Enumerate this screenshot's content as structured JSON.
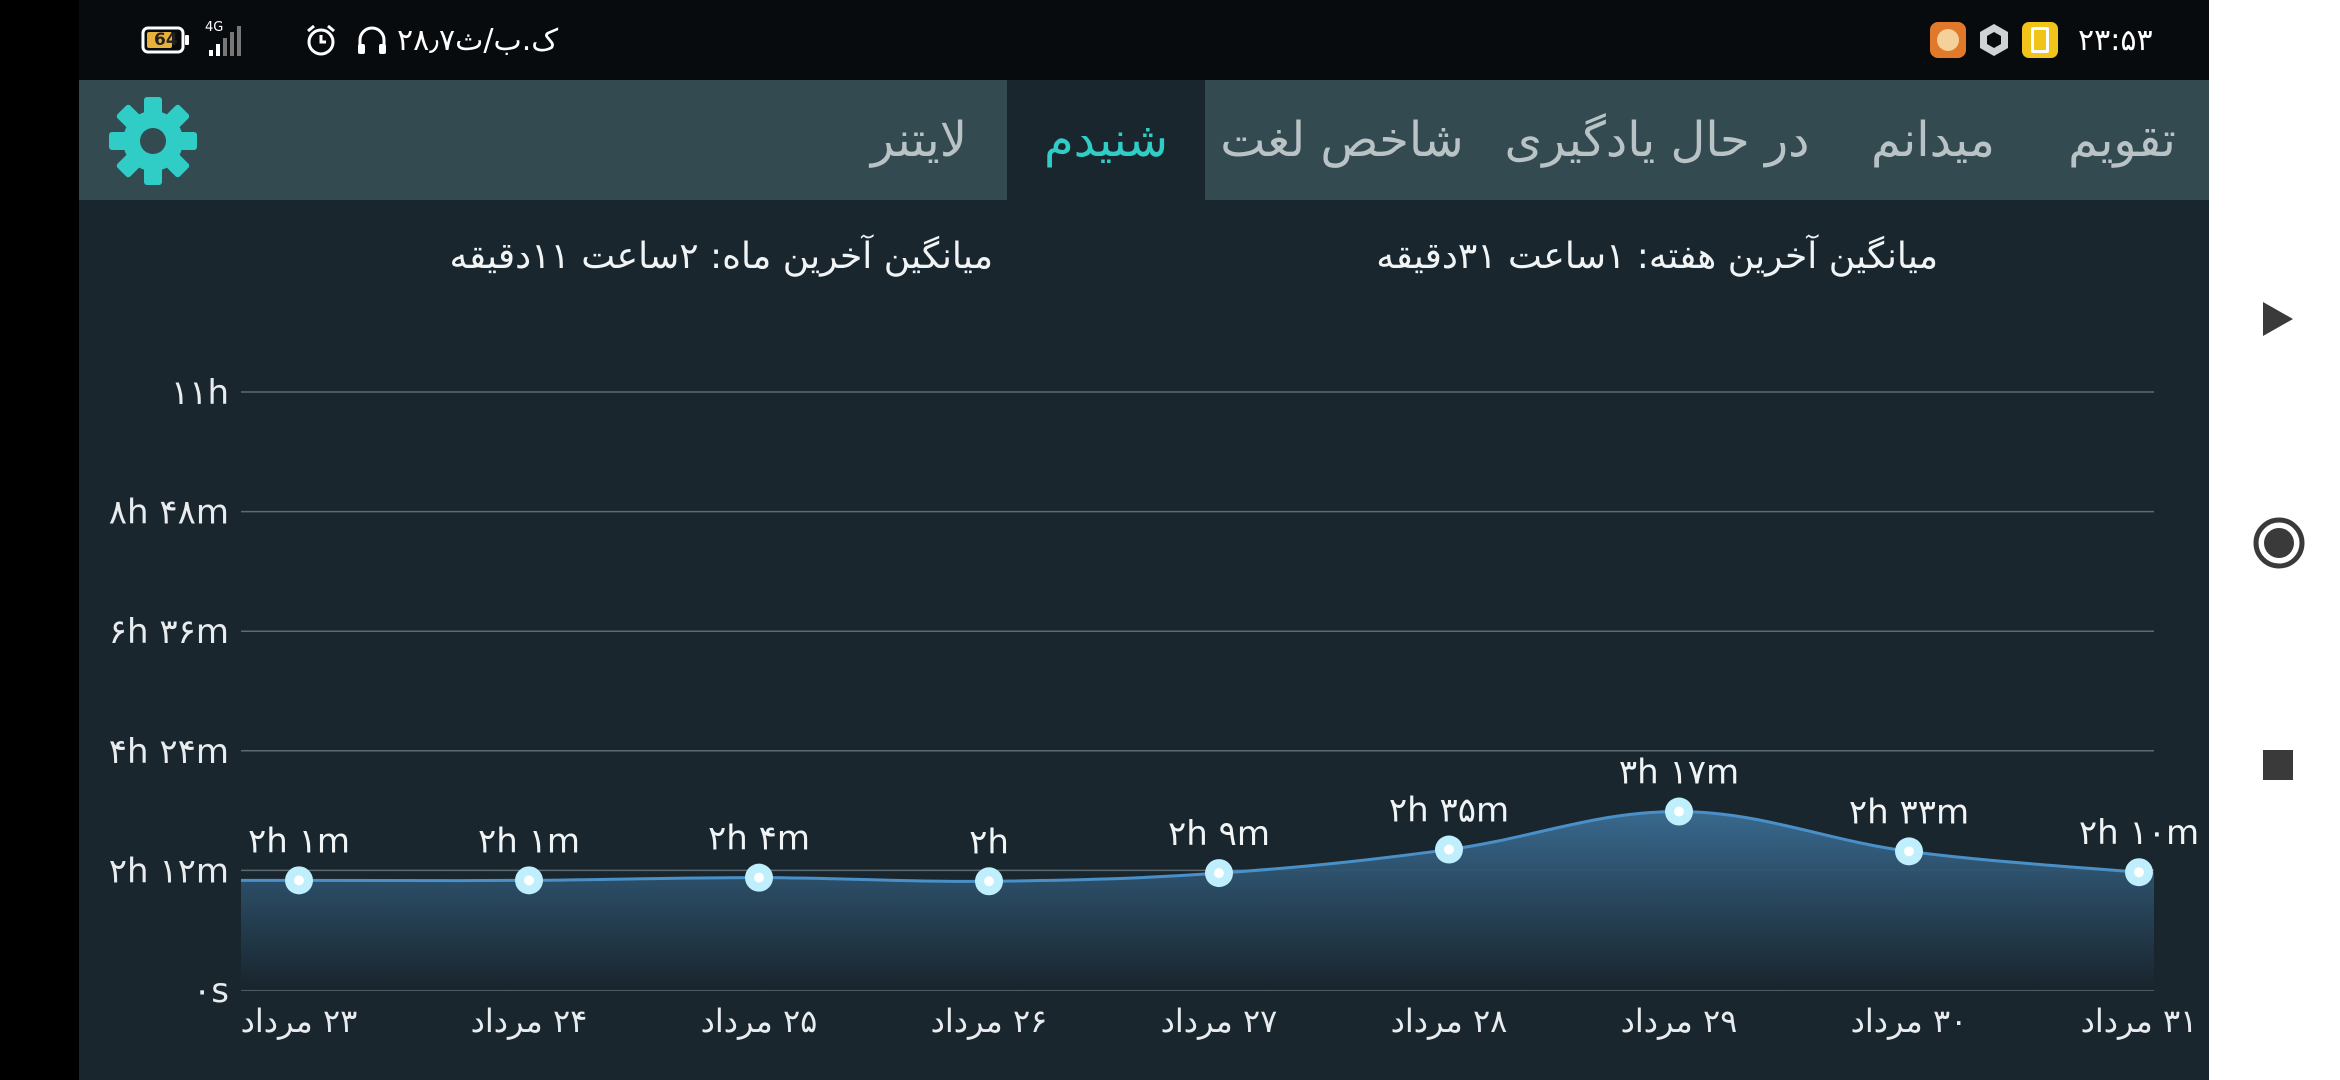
{
  "status_bar": {
    "time": "۲۳:۵۳",
    "data_speed": "۲۸٫۷ک.ب/ث",
    "battery": "64",
    "network": "4G"
  },
  "tabs": [
    {
      "label": "تقویم",
      "active": false
    },
    {
      "label": "میدانم",
      "active": false
    },
    {
      "label": "در حال یادگیری",
      "active": false
    },
    {
      "label": "شاخص لغت",
      "active": false
    },
    {
      "label": "شنیدم",
      "active": true
    },
    {
      "label": "لایتنر",
      "active": false
    }
  ],
  "averages": {
    "week": "میانگین آخرین هفته: ۱ساعت ۳۱دقیقه",
    "month": "میانگین آخرین ماه: ۲ساعت ۱۱دقیقه"
  },
  "colors": {
    "accent": "#2fcdc6",
    "background": "#1a262e",
    "tab_bar": "#324a50",
    "line": "#4a90c8",
    "area_top": "#3a6d94",
    "area_bottom": "#18242c"
  },
  "chart_data": {
    "type": "area",
    "y_unit": "minutes",
    "ylim": [
      0,
      660
    ],
    "y_ticks": [
      0,
      132,
      264,
      396,
      528,
      660
    ],
    "y_tick_labels": [
      "۰s",
      "۲h ۱۲m",
      "۴h ۲۴m",
      "۶h ۳۶m",
      "۸h ۴۸m",
      "۱۱h"
    ],
    "categories": [
      "۲۳ مرداد",
      "۲۴ مرداد",
      "۲۵ مرداد",
      "۲۶ مرداد",
      "۲۷ مرداد",
      "۲۸ مرداد",
      "۲۹ مرداد",
      "۳۰ مرداد",
      "۳۱ مرداد"
    ],
    "values": [
      121,
      121,
      124,
      120,
      129,
      155,
      197,
      153,
      130
    ],
    "data_labels": [
      "۲h ۱m",
      "۲h ۱m",
      "۲h ۴m",
      "۲h",
      "۲h ۹m",
      "۲h ۳۵m",
      "۳h ۱۷m",
      "۲h ۳۳m",
      "۲h ۱۰m"
    ],
    "grid": true
  }
}
